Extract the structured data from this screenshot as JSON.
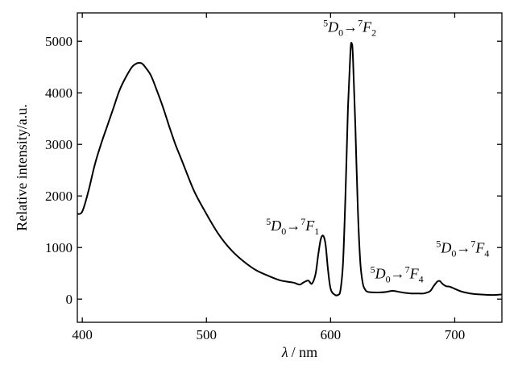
{
  "chart_data": {
    "type": "line",
    "title": "",
    "xlabel_symbol": "λ",
    "xlabel_unit": "/ nm",
    "ylabel": "Relative intensity/a.u.",
    "xlim": [
      396,
      738
    ],
    "ylim": [
      -450,
      5550
    ],
    "xticks": [
      400,
      500,
      600,
      700
    ],
    "yticks": [
      0,
      1000,
      2000,
      3000,
      4000,
      5000
    ],
    "grid": false,
    "series": [
      {
        "color": "#000000",
        "x": [
          396,
          400,
          405,
          410,
          415,
          420,
          425,
          430,
          435,
          440,
          443,
          445,
          448,
          450,
          455,
          460,
          465,
          470,
          475,
          480,
          490,
          500,
          510,
          520,
          530,
          540,
          550,
          560,
          570,
          575,
          578,
          582,
          585,
          588,
          590,
          592,
          594,
          596,
          598,
          600,
          603,
          606,
          608,
          610,
          612,
          614,
          616,
          617,
          618,
          620,
          622,
          624,
          626,
          628,
          630,
          635,
          640,
          645,
          650,
          655,
          660,
          665,
          670,
          675,
          680,
          683,
          686,
          688,
          690,
          693,
          696,
          700,
          705,
          710,
          715,
          720,
          730,
          738
        ],
        "y": [
          1650,
          1700,
          2100,
          2600,
          3000,
          3350,
          3700,
          4050,
          4300,
          4500,
          4560,
          4580,
          4570,
          4520,
          4350,
          4050,
          3720,
          3350,
          3000,
          2700,
          2100,
          1650,
          1250,
          950,
          730,
          560,
          450,
          360,
          320,
          280,
          320,
          360,
          300,
          500,
          850,
          1150,
          1230,
          1050,
          550,
          200,
          90,
          80,
          180,
          700,
          2000,
          3700,
          4800,
          4960,
          4700,
          3300,
          1700,
          700,
          300,
          180,
          140,
          130,
          130,
          140,
          160,
          140,
          120,
          110,
          110,
          110,
          150,
          250,
          340,
          350,
          300,
          250,
          240,
          200,
          150,
          120,
          100,
          90,
          80,
          90
        ]
      }
    ],
    "annotations": [
      {
        "sup1": "5",
        "main1": "D",
        "sub1": "0",
        "arrow": "→",
        "sup2": "7",
        "main2": "F",
        "sub2": "2",
        "x": 594,
        "y": 5180
      },
      {
        "sup1": "5",
        "main1": "D",
        "sub1": "0",
        "arrow": "→",
        "sup2": "7",
        "main2": "F",
        "sub2": "1",
        "x": 548,
        "y": 1330
      },
      {
        "sup1": "5",
        "main1": "D",
        "sub1": "0",
        "arrow": "→",
        "sup2": "7",
        "main2": "F",
        "sub2": "4",
        "x": 632,
        "y": 400
      },
      {
        "sup1": "5",
        "main1": "D",
        "sub1": "0",
        "arrow": "→",
        "sup2": "7",
        "main2": "F",
        "sub2": "4",
        "x": 685,
        "y": 900
      }
    ]
  }
}
